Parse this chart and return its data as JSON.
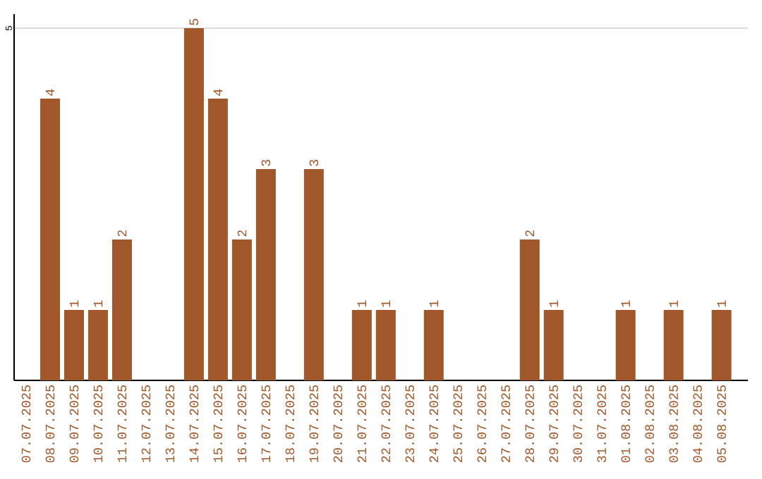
{
  "chart_data": {
    "type": "bar",
    "categories": [
      "07.07.2025",
      "08.07.2025",
      "09.07.2025",
      "10.07.2025",
      "11.07.2025",
      "12.07.2025",
      "13.07.2025",
      "14.07.2025",
      "15.07.2025",
      "16.07.2025",
      "17.07.2025",
      "18.07.2025",
      "19.07.2025",
      "20.07.2025",
      "21.07.2025",
      "22.07.2025",
      "23.07.2025",
      "24.07.2025",
      "25.07.2025",
      "26.07.2025",
      "27.07.2025",
      "28.07.2025",
      "29.07.2025",
      "30.07.2025",
      "31.07.2025",
      "01.08.2025",
      "02.08.2025",
      "03.08.2025",
      "04.08.2025",
      "05.08.2025"
    ],
    "values": [
      0,
      4,
      1,
      1,
      2,
      0,
      0,
      5,
      4,
      2,
      3,
      0,
      3,
      0,
      1,
      1,
      0,
      1,
      0,
      0,
      0,
      2,
      1,
      0,
      0,
      1,
      0,
      1,
      0,
      1
    ],
    "value_labels": [
      null,
      "4",
      "1",
      "1",
      "2",
      null,
      null,
      "5",
      "4",
      "2",
      "3",
      null,
      "3",
      null,
      "1",
      "1",
      null,
      "1",
      null,
      null,
      null,
      "2",
      "1",
      null,
      null,
      "1",
      null,
      "1",
      null,
      "1"
    ],
    "color": "#a0582a",
    "ylim": [
      0,
      5.2
    ],
    "yticks": [
      5
    ],
    "grid": "y"
  }
}
